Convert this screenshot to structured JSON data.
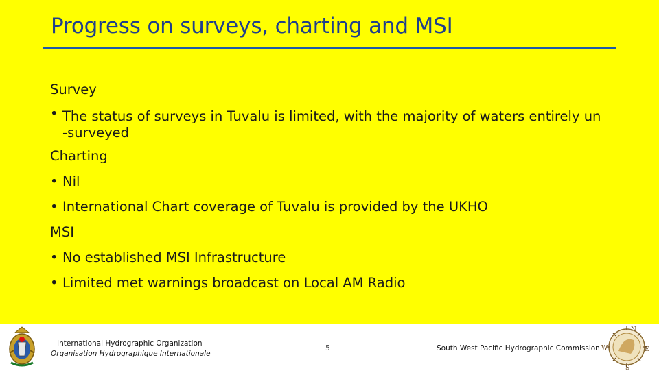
{
  "slide": {
    "title": "Progress on surveys, charting and MSI",
    "sections": {
      "survey_heading": "Survey",
      "survey_bullet_1_line_1": "The status of surveys in Tuvalu is limited, with the majority of waters entirely un",
      "survey_bullet_1_line_2": "-surveyed",
      "charting_heading": "Charting",
      "charting_bullet_1": "Nil",
      "charting_bullet_2": "International Chart coverage of Tuvalu is provided by the UKHO",
      "msi_heading": "MSI",
      "msi_bullet_1": "No established MSI Infrastructure",
      "msi_bullet_2": "Limited met warnings broadcast on Local AM Radio"
    },
    "bullet_glyph": "•"
  },
  "footer": {
    "org_en": "International Hydrographic Organization",
    "org_fr": "Organisation Hydrographique Internationale",
    "page_number": "5",
    "commission": "South West Pacific Hydrographic Commission",
    "compass": {
      "n": "N",
      "s": "S",
      "e": "E",
      "w": "W"
    }
  },
  "colors": {
    "background": "#ffff00",
    "title": "#1f3f8c",
    "rule": "#1f5aa6"
  },
  "icons": {
    "left_logo": "iho-emblem-icon",
    "right_logo": "swphc-compass-emblem-icon"
  }
}
